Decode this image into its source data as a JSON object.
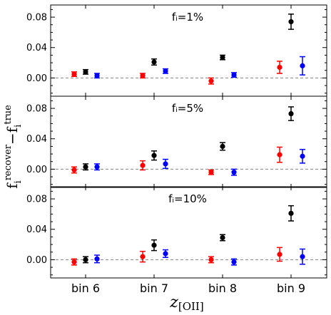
{
  "chart_data": {
    "type": "scatter",
    "categories": [
      "bin 6",
      "bin 7",
      "bin 8",
      "bin 9"
    ],
    "xlabel": {
      "main": "z",
      "sub": "[OII]"
    },
    "ylabel": {
      "base1": "f",
      "sub1": "i",
      "sup1": "recover",
      "minus": "−",
      "base2": "f",
      "sub2": "i",
      "sup2": "true"
    },
    "grid": false,
    "error_bars": true,
    "reference_line": {
      "y": 0,
      "style": "dashed",
      "color": "#808080"
    },
    "colors": {
      "red": "#ff0000",
      "black": "#000000",
      "blue": "#0000ff"
    },
    "panels": [
      {
        "title": "fᵢ=1%",
        "ylim": [
          -0.024,
          0.096
        ],
        "yticks": [
          0.0,
          0.04,
          0.08
        ],
        "ytick_labels": [
          "0.00",
          "0.04",
          "0.08"
        ],
        "series": [
          {
            "color": "red",
            "points": [
              {
                "y": 0.005,
                "err": 0.003
              },
              {
                "y": 0.003,
                "err": 0.003
              },
              {
                "y": -0.004,
                "err": 0.004
              },
              {
                "y": 0.014,
                "err": 0.008
              }
            ]
          },
          {
            "color": "black",
            "points": [
              {
                "y": 0.008,
                "err": 0.003
              },
              {
                "y": 0.021,
                "err": 0.004
              },
              {
                "y": 0.027,
                "err": 0.003
              },
              {
                "y": 0.074,
                "err": 0.01
              }
            ]
          },
          {
            "color": "blue",
            "points": [
              {
                "y": 0.003,
                "err": 0.003
              },
              {
                "y": 0.009,
                "err": 0.003
              },
              {
                "y": 0.004,
                "err": 0.003
              },
              {
                "y": 0.016,
                "err": 0.012
              }
            ]
          }
        ]
      },
      {
        "title": "fᵢ=5%",
        "ylim": [
          -0.024,
          0.096
        ],
        "yticks": [
          0.0,
          0.04,
          0.08
        ],
        "ytick_labels": [
          "0.00",
          "0.04",
          "0.08"
        ],
        "series": [
          {
            "color": "red",
            "points": [
              {
                "y": -0.001,
                "err": 0.004
              },
              {
                "y": 0.005,
                "err": 0.006
              },
              {
                "y": -0.004,
                "err": 0.003
              },
              {
                "y": 0.019,
                "err": 0.01
              }
            ]
          },
          {
            "color": "black",
            "points": [
              {
                "y": 0.003,
                "err": 0.004
              },
              {
                "y": 0.018,
                "err": 0.006
              },
              {
                "y": 0.03,
                "err": 0.005
              },
              {
                "y": 0.073,
                "err": 0.009
              }
            ]
          },
          {
            "color": "blue",
            "points": [
              {
                "y": 0.003,
                "err": 0.004
              },
              {
                "y": 0.007,
                "err": 0.006
              },
              {
                "y": -0.004,
                "err": 0.004
              },
              {
                "y": 0.017,
                "err": 0.009
              }
            ]
          }
        ]
      },
      {
        "title": "fᵢ=10%",
        "ylim": [
          -0.024,
          0.096
        ],
        "yticks": [
          0.0,
          0.04,
          0.08
        ],
        "ytick_labels": [
          "0.00",
          "0.04",
          "0.08"
        ],
        "series": [
          {
            "color": "red",
            "points": [
              {
                "y": -0.003,
                "err": 0.004
              },
              {
                "y": 0.004,
                "err": 0.007
              },
              {
                "y": 0.0,
                "err": 0.004
              },
              {
                "y": 0.007,
                "err": 0.009
              }
            ]
          },
          {
            "color": "black",
            "points": [
              {
                "y": 0.0,
                "err": 0.004
              },
              {
                "y": 0.019,
                "err": 0.007
              },
              {
                "y": 0.029,
                "err": 0.004
              },
              {
                "y": 0.061,
                "err": 0.01
              }
            ]
          },
          {
            "color": "blue",
            "points": [
              {
                "y": 0.001,
                "err": 0.005
              },
              {
                "y": 0.008,
                "err": 0.005
              },
              {
                "y": -0.003,
                "err": 0.004
              },
              {
                "y": 0.004,
                "err": 0.01
              }
            ]
          }
        ]
      }
    ]
  }
}
